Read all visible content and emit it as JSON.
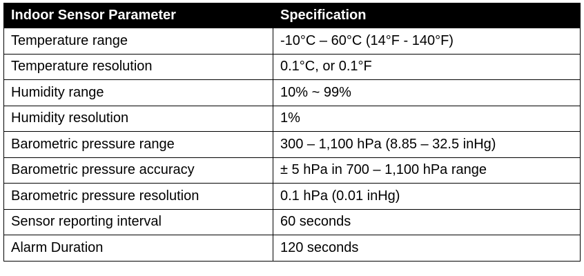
{
  "table": {
    "header": [
      "Indoor Sensor Parameter",
      "Specification"
    ],
    "rows": [
      [
        "Temperature range",
        "-10°C – 60°C (14°F - 140°F)"
      ],
      [
        "Temperature resolution",
        "0.1°C, or 0.1°F"
      ],
      [
        "Humidity range",
        "10% ~ 99%"
      ],
      [
        "Humidity resolution",
        "1%"
      ],
      [
        "Barometric pressure range",
        "300 – 1,100 hPa (8.85 – 32.5 inHg)"
      ],
      [
        "Barometric pressure accuracy",
        "± 5 hPa in 700 – 1,100 hPa range"
      ],
      [
        "Barometric pressure resolution",
        "0.1 hPa (0.01 inHg)"
      ],
      [
        "Sensor reporting interval",
        "60 seconds"
      ],
      [
        "Alarm Duration",
        "120 seconds"
      ]
    ]
  }
}
